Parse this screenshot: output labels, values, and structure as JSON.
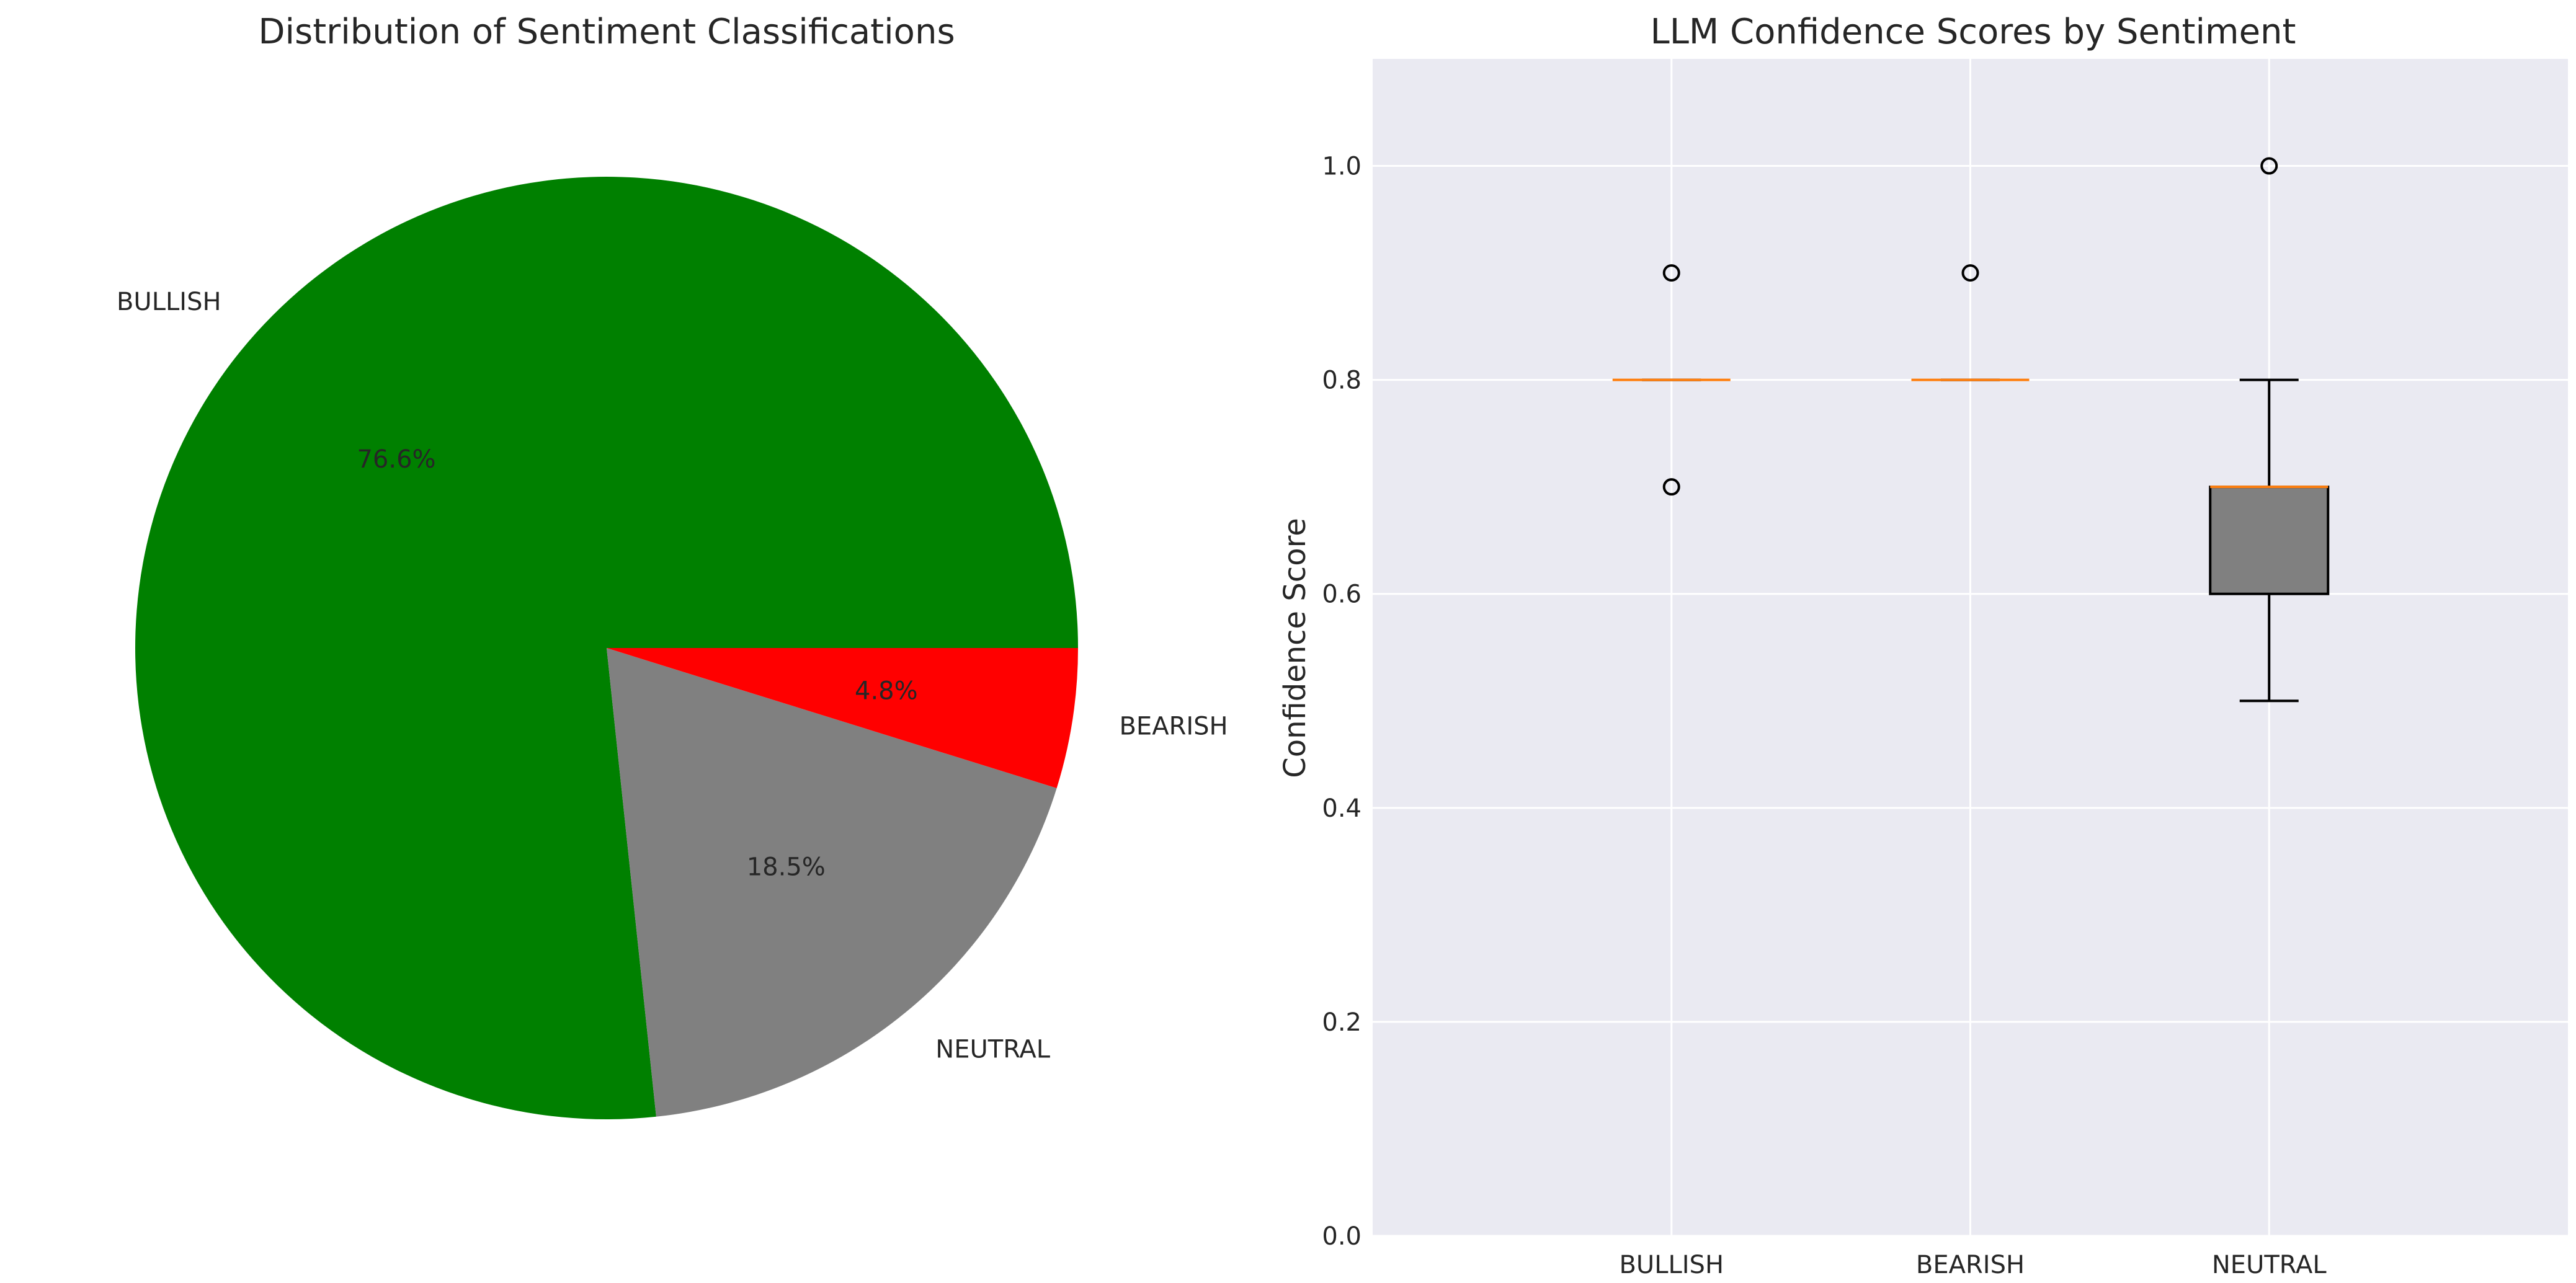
{
  "chart_data": [
    {
      "type": "pie",
      "title": "Distribution of Sentiment Classifications",
      "slices": [
        {
          "label": "BULLISH",
          "pct_label": "76.6%",
          "value": 76.6,
          "color": "#008000"
        },
        {
          "label": "NEUTRAL",
          "pct_label": "18.5%",
          "value": 18.5,
          "color": "#808080"
        },
        {
          "label": "BEARISH",
          "pct_label": "4.8%",
          "value": 4.8,
          "color": "#ff0000"
        }
      ]
    },
    {
      "type": "boxplot",
      "title": "LLM Confidence Scores by Sentiment",
      "xlabel": "",
      "ylabel": "Confidence Score",
      "ylim": [
        0.0,
        1.1
      ],
      "yticks": [
        "0.0",
        "0.2",
        "0.4",
        "0.6",
        "0.8",
        "1.0"
      ],
      "grid": true,
      "categories": [
        "BULLISH",
        "BEARISH",
        "NEUTRAL"
      ],
      "boxes": [
        {
          "category": "BULLISH",
          "q1": 0.8,
          "median": 0.8,
          "q3": 0.8,
          "whisker_low": 0.8,
          "whisker_high": 0.8,
          "outliers": [
            0.9,
            0.7
          ],
          "fill": "#008000"
        },
        {
          "category": "BEARISH",
          "q1": 0.8,
          "median": 0.8,
          "q3": 0.8,
          "whisker_low": 0.8,
          "whisker_high": 0.8,
          "outliers": [
            0.9
          ],
          "fill": "#ff0000"
        },
        {
          "category": "NEUTRAL",
          "q1": 0.6,
          "median": 0.7,
          "q3": 0.7,
          "whisker_low": 0.5,
          "whisker_high": 0.8,
          "outliers": [
            1.0
          ],
          "fill": "#808080"
        }
      ],
      "colors": {
        "background": "#eaeaf2",
        "grid": "#ffffff",
        "median": "#ff7f0e",
        "line": "#000000"
      }
    }
  ]
}
